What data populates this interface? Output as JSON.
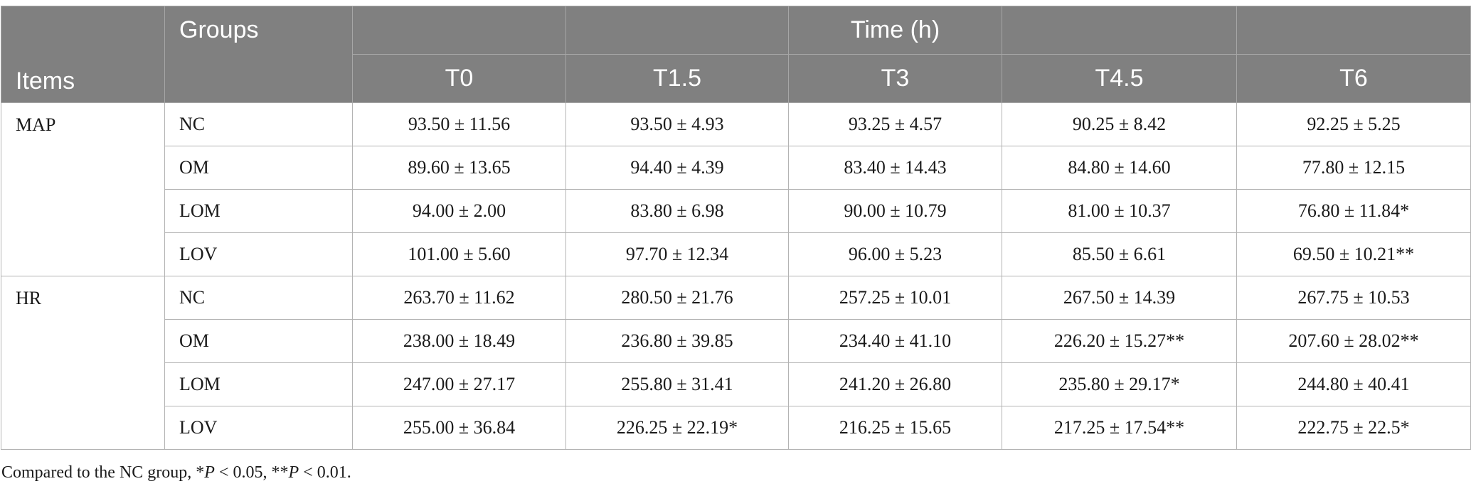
{
  "table": {
    "header": {
      "items": "Items",
      "groups": "Groups",
      "time": "Time (h)",
      "timepoints": [
        "T0",
        "T1.5",
        "T3",
        "T4.5",
        "T6"
      ]
    },
    "sections": [
      {
        "item": "MAP",
        "rows": [
          {
            "group": "NC",
            "values": [
              "93.50 ± 11.56",
              "93.50 ± 4.93",
              "93.25 ± 4.57",
              "90.25 ± 8.42",
              "92.25 ± 5.25"
            ]
          },
          {
            "group": "OM",
            "values": [
              "89.60 ± 13.65",
              "94.40 ± 4.39",
              "83.40 ± 14.43",
              "84.80 ± 14.60",
              "77.80 ± 12.15"
            ]
          },
          {
            "group": "LOM",
            "values": [
              "94.00 ± 2.00",
              "83.80 ± 6.98",
              "90.00 ± 10.79",
              "81.00 ± 10.37",
              "76.80 ± 11.84*"
            ]
          },
          {
            "group": "LOV",
            "values": [
              "101.00 ± 5.60",
              "97.70 ± 12.34",
              "96.00 ± 5.23",
              "85.50 ± 6.61",
              "69.50 ± 10.21**"
            ]
          }
        ]
      },
      {
        "item": "HR",
        "rows": [
          {
            "group": "NC",
            "values": [
              "263.70 ± 11.62",
              "280.50 ± 21.76",
              "257.25 ± 10.01",
              "267.50 ± 14.39",
              "267.75 ± 10.53"
            ]
          },
          {
            "group": "OM",
            "values": [
              "238.00 ± 18.49",
              "236.80 ± 39.85",
              "234.40 ± 41.10",
              "226.20 ± 15.27**",
              "207.60 ± 28.02**"
            ]
          },
          {
            "group": "LOM",
            "values": [
              "247.00 ± 27.17",
              "255.80 ± 31.41",
              "241.20 ± 26.80",
              "235.80 ± 29.17*",
              "244.80 ± 40.41"
            ]
          },
          {
            "group": "LOV",
            "values": [
              "255.00 ± 36.84",
              "226.25 ± 22.19*",
              "216.25 ± 15.65",
              "217.25 ± 17.54**",
              "222.75 ± 22.5*"
            ]
          }
        ]
      }
    ]
  },
  "footnote": {
    "prefix": "Compared to the NC group, *",
    "p1": "P",
    "mid": " < 0.05, **",
    "p2": "P",
    "suffix": " < 0.01."
  }
}
